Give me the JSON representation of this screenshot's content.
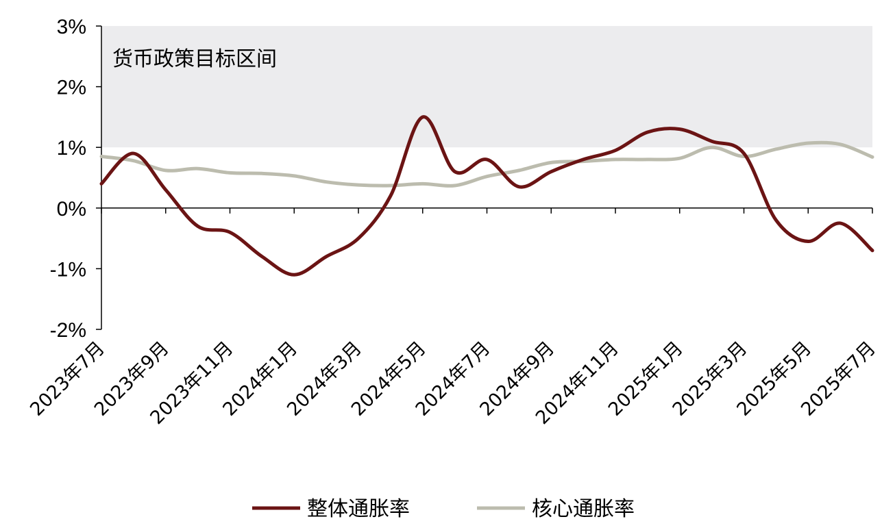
{
  "chart_data": {
    "type": "line",
    "title": "",
    "xlabel": "",
    "ylabel": "",
    "ylim": [
      -2,
      3
    ],
    "y_ticks": [
      -2,
      -1,
      0,
      1,
      2,
      3
    ],
    "y_tick_labels": [
      "-2%",
      "-1%",
      "0%",
      "1%",
      "2%",
      "3%"
    ],
    "categories": [
      "2023年7月",
      "2023年8月",
      "2023年9月",
      "2023年10月",
      "2023年11月",
      "2023年12月",
      "2024年1月",
      "2024年2月",
      "2024年3月",
      "2024年4月",
      "2024年5月",
      "2024年6月",
      "2024年7月",
      "2024年8月",
      "2024年9月",
      "2024年10月",
      "2024年11月",
      "2024年12月",
      "2025年1月",
      "2025年2月",
      "2025年3月",
      "2025年4月",
      "2025年5月",
      "2025年6月",
      "2025年7月"
    ],
    "x_tick_labels": [
      "2023年7月",
      "2023年9月",
      "2023年11月",
      "2024年1月",
      "2024年3月",
      "2024年5月",
      "2024年7月",
      "2024年9月",
      "2024年11月",
      "2025年1月",
      "2025年3月",
      "2025年5月",
      "2025年7月"
    ],
    "band": {
      "from": 1,
      "to": 3,
      "label": "货币政策目标区间",
      "color": "#ececee"
    },
    "series": [
      {
        "name": "整体通胀率",
        "color": "#6b1414",
        "values": [
          0.4,
          0.9,
          0.3,
          -0.3,
          -0.4,
          -0.8,
          -1.1,
          -0.8,
          -0.5,
          0.2,
          1.5,
          0.6,
          0.8,
          0.35,
          0.6,
          0.8,
          0.95,
          1.25,
          1.3,
          1.1,
          0.9,
          -0.2,
          -0.55,
          -0.25,
          -0.7
        ]
      },
      {
        "name": "核心通胀率",
        "color": "#bcbcae",
        "values": [
          0.85,
          0.78,
          0.62,
          0.65,
          0.58,
          0.57,
          0.53,
          0.43,
          0.38,
          0.37,
          0.4,
          0.37,
          0.52,
          0.62,
          0.75,
          0.77,
          0.8,
          0.8,
          0.82,
          1.0,
          0.85,
          0.97,
          1.07,
          1.05,
          0.84
        ]
      }
    ],
    "grid": false,
    "legend_position": "bottom"
  }
}
